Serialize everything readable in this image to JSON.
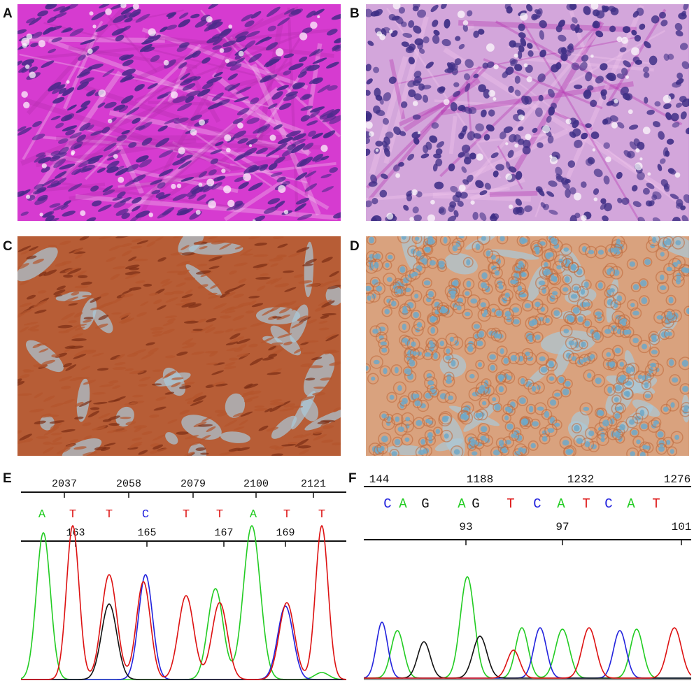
{
  "figure": {
    "panels": {
      "A": {
        "label": "A",
        "content": "histology-he-spindle"
      },
      "B": {
        "label": "B",
        "content": "histology-he-epithelioid"
      },
      "C": {
        "label": "C",
        "content": "ihc-brown-spindle"
      },
      "D": {
        "label": "D",
        "content": "ihc-brown-epithelioid"
      },
      "E": {
        "label": "E",
        "positions": [
          "2037",
          "2058",
          "2079",
          "2100",
          "2121"
        ],
        "bases": [
          "A",
          "T",
          "T",
          "C",
          "T",
          "T",
          "A",
          "T",
          "T"
        ],
        "codons": [
          "163",
          "165",
          "167",
          "169"
        ]
      },
      "F": {
        "label": "F",
        "positions": [
          "144",
          "1188",
          "1232",
          "1276"
        ],
        "bases": [
          "C",
          "A",
          "G",
          "A",
          "G",
          "T",
          "C",
          "A",
          "T",
          "C",
          "A",
          "T"
        ],
        "codons": [
          "93",
          "97",
          "101"
        ]
      }
    },
    "colors": {
      "A": "#22cc22",
      "C": "#2222dd",
      "G": "#111111",
      "T": "#dd1111",
      "he_stroma": "#d63bd0",
      "he_nuclei": "#4a2a8a",
      "ihc_brown": "#b4552c",
      "ihc_blue": "#6fa8c8"
    },
    "chart_data": [
      {
        "type": "line",
        "panel": "E",
        "channels": [
          "A",
          "C",
          "G",
          "T"
        ],
        "base_calls": [
          "A",
          "T",
          "T",
          "C",
          "T",
          "T",
          "A",
          "T",
          "T"
        ],
        "peak_order": [
          "A",
          "T",
          "T+G",
          "C+T",
          "T+C",
          "A+T",
          "A",
          "C+T",
          "T"
        ]
      },
      {
        "type": "line",
        "panel": "F",
        "channels": [
          "A",
          "C",
          "G",
          "T"
        ],
        "base_calls": [
          "C",
          "A",
          "G",
          "A",
          "G",
          "T",
          "C",
          "A",
          "T",
          "C",
          "A",
          "T"
        ],
        "peak_order": [
          "C",
          "A",
          "G",
          "A",
          "G",
          "T",
          "C",
          "A",
          "T",
          "C",
          "A",
          "T"
        ]
      }
    ]
  }
}
